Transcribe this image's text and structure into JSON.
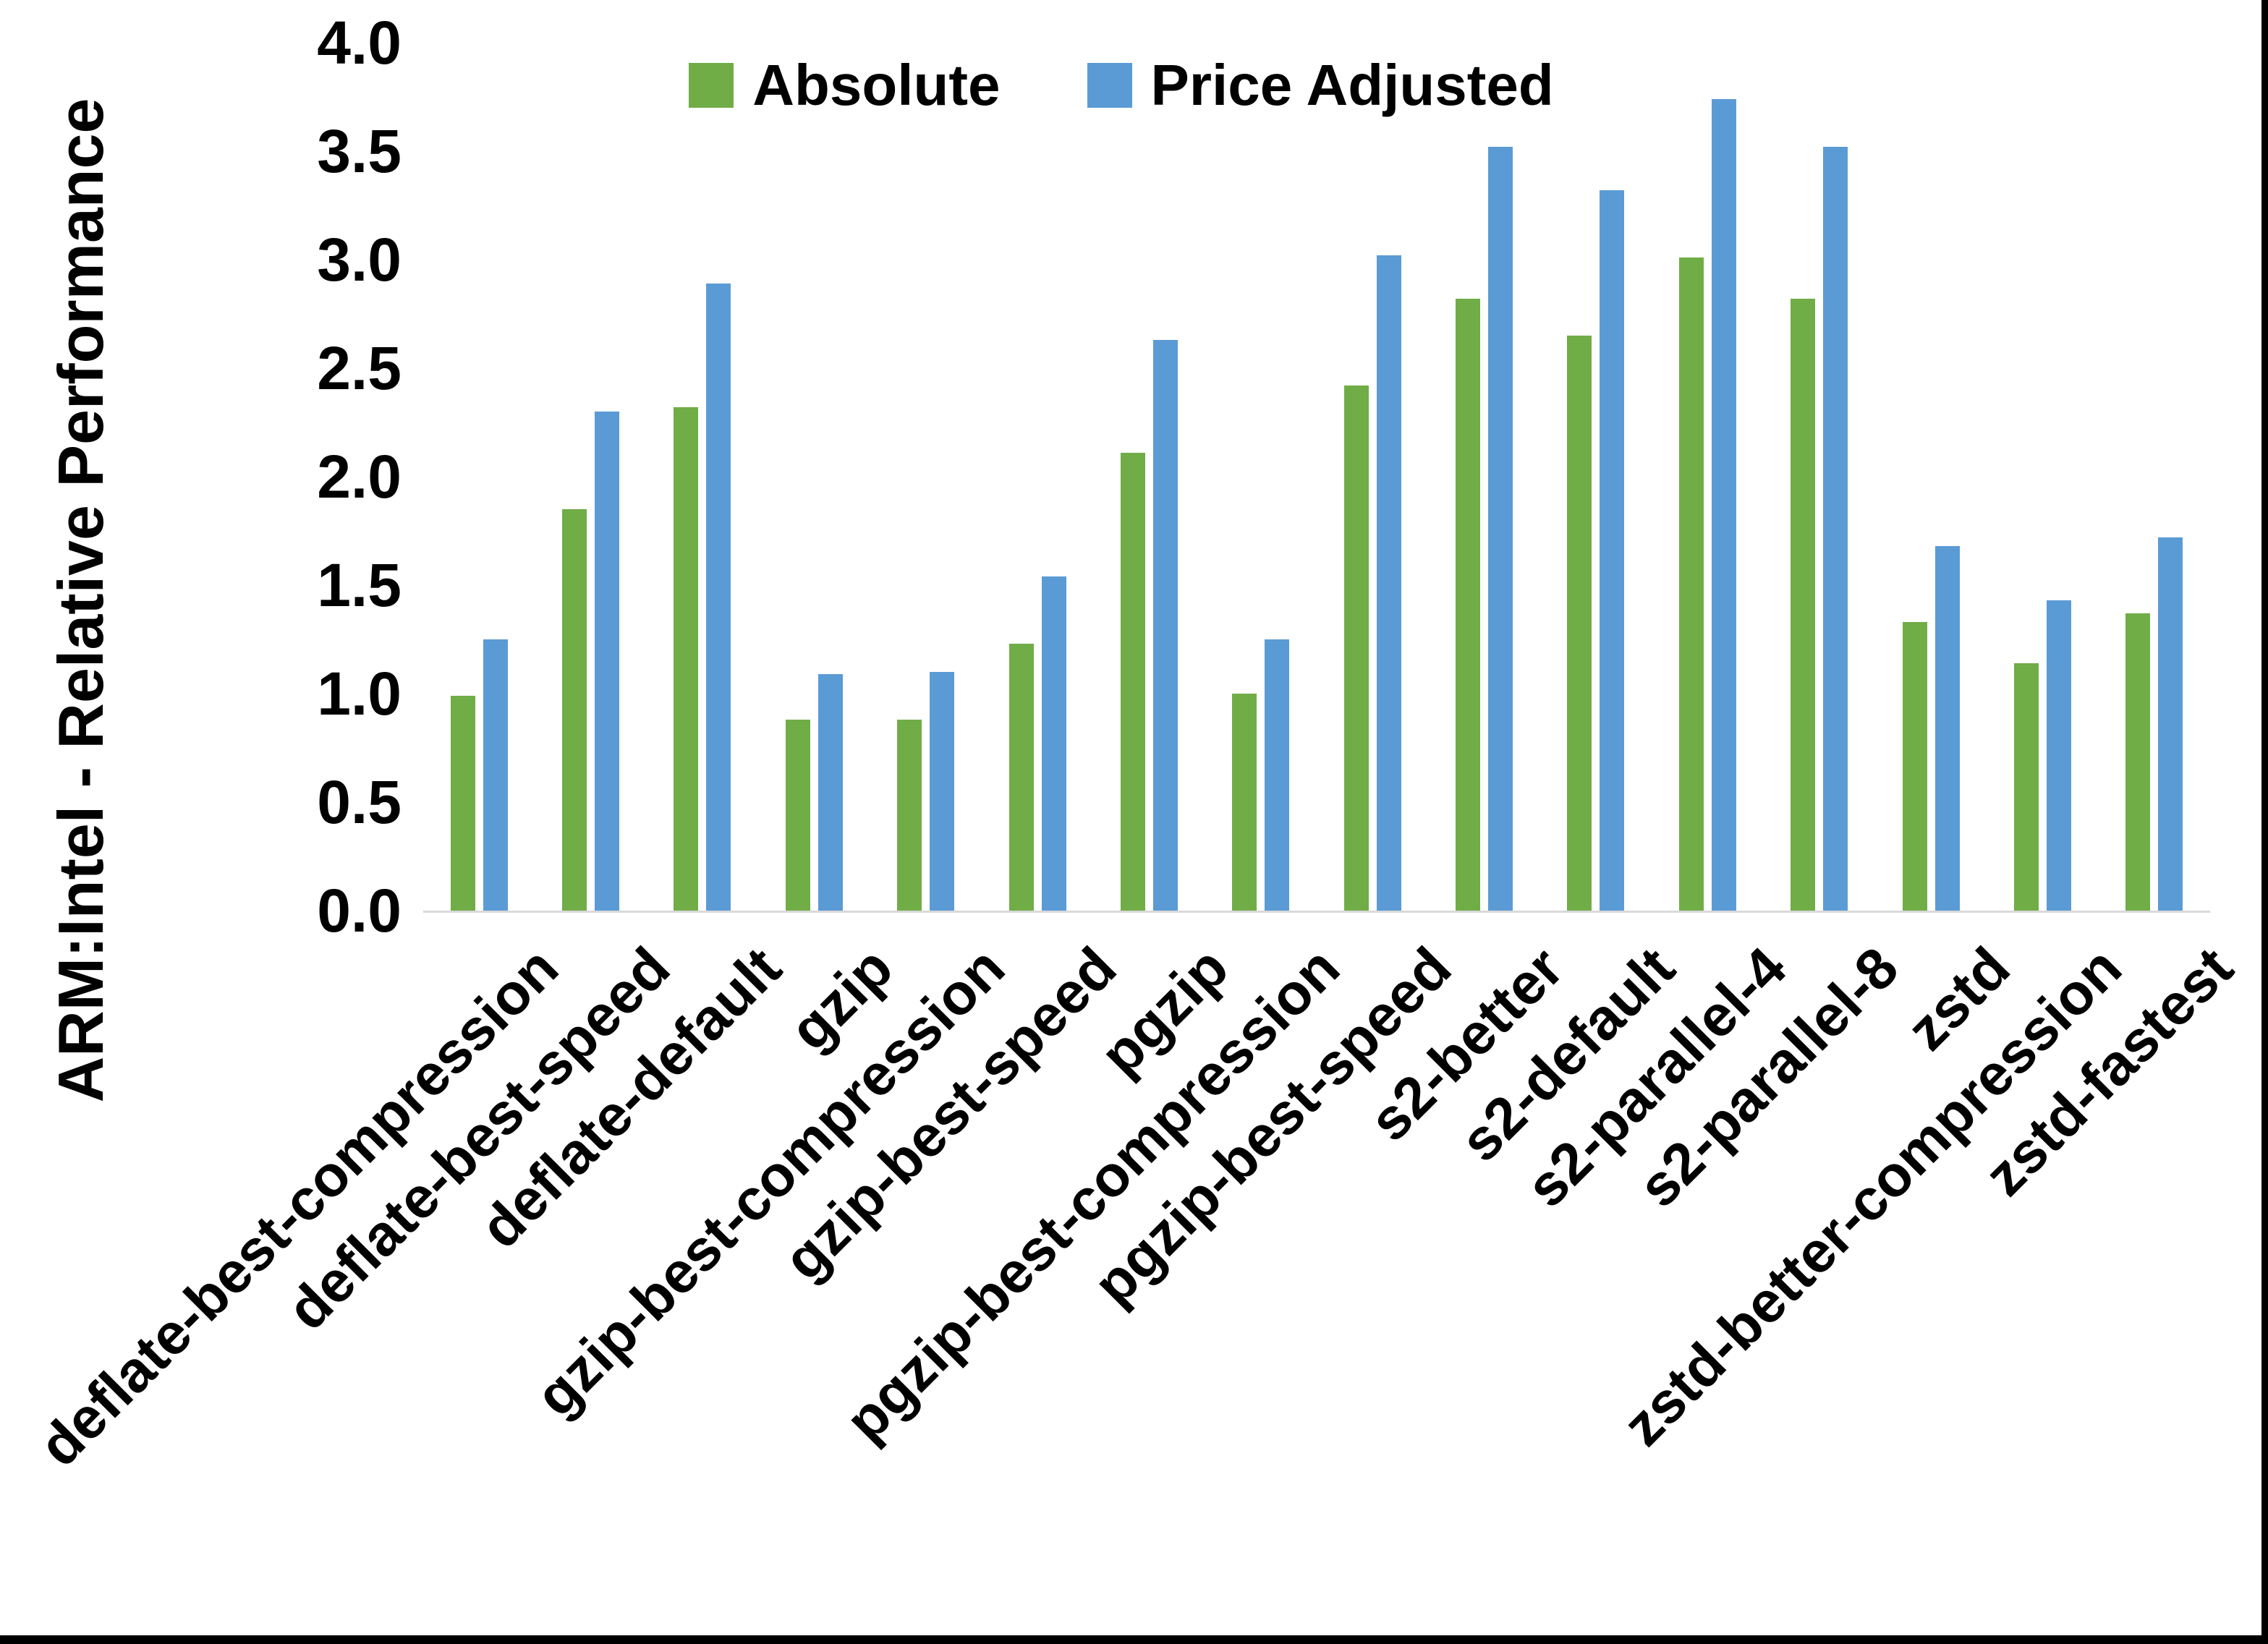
{
  "page": {
    "background": "#ffffff",
    "edge_strip_color": "#000000"
  },
  "axis": {
    "baseline_color": "#d9d9d9",
    "text_color": "#000000"
  },
  "legend": {
    "items": [
      {
        "label": "Absolute",
        "color": "#70AD47"
      },
      {
        "label": "Price Adjusted",
        "color": "#5B9BD5"
      }
    ]
  },
  "chart_data": {
    "type": "bar",
    "title": "",
    "xlabel": "",
    "ylabel": "ARM:Intel - Relative Performance",
    "ylim": [
      0.0,
      4.0
    ],
    "ytick_step": 0.5,
    "ytick_labels": [
      "0.0",
      "0.5",
      "1.0",
      "1.5",
      "2.0",
      "2.5",
      "3.0",
      "3.5",
      "4.0"
    ],
    "grid": false,
    "legend_position": "top-center",
    "categories": [
      "deflate-best-compression",
      "deflate-best-speed",
      "deflate-default",
      "gzip",
      "gzip-best-compression",
      "gzip-best-speed",
      "pgzip",
      "pgzip-best-compression",
      "pgzip-best-speed",
      "s2-better",
      "s2-default",
      "s2-parallel-4",
      "s2-parallel-8",
      "zstd",
      "zstd-better-compression",
      "zstd-fastest"
    ],
    "series": [
      {
        "name": "Absolute",
        "color": "#70AD47",
        "values": [
          0.99,
          1.85,
          2.32,
          0.88,
          0.88,
          1.23,
          2.11,
          1.0,
          2.42,
          2.82,
          2.65,
          3.01,
          2.82,
          1.33,
          1.14,
          1.37
        ]
      },
      {
        "name": "Price Adjusted",
        "color": "#5B9BD5",
        "values": [
          1.25,
          2.3,
          2.89,
          1.09,
          1.1,
          1.54,
          2.63,
          1.25,
          3.02,
          3.52,
          3.32,
          3.74,
          3.52,
          1.68,
          1.43,
          1.72
        ]
      }
    ]
  }
}
